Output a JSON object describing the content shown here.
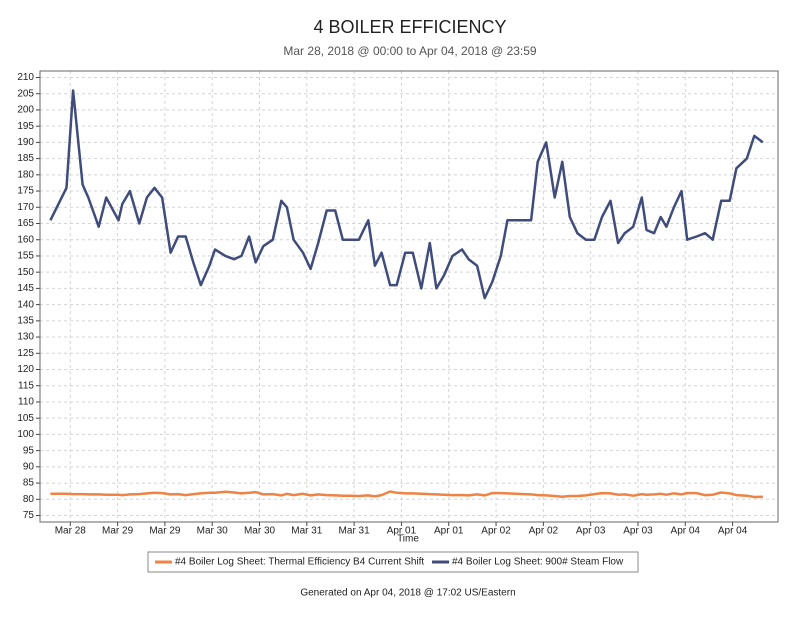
{
  "chart_data": {
    "type": "line",
    "title": "4 BOILER EFFICIENCY",
    "subtitle": "Mar 28, 2018 @ 00:00 to Apr 04, 2018 @ 23:59",
    "x_label": "Time",
    "footer": "Generated on Apr 04, 2018 @ 17:02 US/Eastern",
    "x": [
      -0.21,
      -0.04,
      0.03,
      0.13,
      0.19,
      0.3,
      0.38,
      0.51,
      0.55,
      0.63,
      0.73,
      0.81,
      0.89,
      0.97,
      1.06,
      1.14,
      1.22,
      1.3,
      1.38,
      1.47,
      1.53,
      1.64,
      1.73,
      1.81,
      1.89,
      1.96,
      2.04,
      2.14,
      2.23,
      2.29,
      2.36,
      2.46,
      2.54,
      2.62,
      2.71,
      2.8,
      2.88,
      2.96,
      3.05,
      3.15,
      3.22,
      3.29,
      3.38,
      3.45,
      3.54,
      3.62,
      3.71,
      3.8,
      3.87,
      3.95,
      4.04,
      4.14,
      4.21,
      4.3,
      4.38,
      4.46,
      4.55,
      4.62,
      4.71,
      4.79,
      4.87,
      4.94,
      5.03,
      5.12,
      5.2,
      5.28,
      5.36,
      5.45,
      5.54,
      5.62,
      5.71,
      5.79,
      5.86,
      5.95,
      6.04,
      6.09,
      6.17,
      6.24,
      6.3,
      6.38,
      6.46,
      6.52,
      6.62,
      6.71,
      6.79,
      6.88,
      6.97,
      7.04,
      7.15,
      7.23,
      7.32
    ],
    "series": [
      {
        "name": "#4 Boiler Log Sheet: Thermal Efficiency B4 Current Shift",
        "color": "#ef8345",
        "values": [
          81.7,
          81.7,
          81.6,
          81.6,
          81.5,
          81.5,
          81.4,
          81.4,
          81.3,
          81.5,
          81.6,
          81.8,
          82,
          81.9,
          81.5,
          81.6,
          81.3,
          81.6,
          81.8,
          82,
          82,
          82.3,
          82.1,
          81.8,
          82,
          82.2,
          81.5,
          81.6,
          81.2,
          81.7,
          81.3,
          81.7,
          81.2,
          81.5,
          81.3,
          81.2,
          81.1,
          81.1,
          81,
          81.2,
          80.9,
          81.3,
          82.4,
          82,
          81.8,
          81.8,
          81.7,
          81.6,
          81.5,
          81.4,
          81.3,
          81.3,
          81.2,
          81.5,
          81.2,
          81.9,
          81.9,
          81.8,
          81.7,
          81.6,
          81.5,
          81.3,
          81.2,
          81,
          80.8,
          81,
          81,
          81.2,
          81.6,
          81.9,
          81.8,
          81.4,
          81.5,
          81.1,
          81.6,
          81.4,
          81.5,
          81.7,
          81.4,
          81.8,
          81.5,
          81.9,
          81.9,
          81.3,
          81.4,
          82.1,
          81.8,
          81.3,
          81.1,
          80.7,
          80.8
        ]
      },
      {
        "name": "#4 Boiler Log Sheet: 900# Steam Flow",
        "color": "#3f4c7c",
        "values": [
          166,
          176,
          206,
          177,
          173,
          164,
          173,
          166,
          171,
          175,
          165,
          173,
          176,
          173,
          156,
          161,
          161,
          153,
          146,
          152,
          157,
          155,
          154,
          155,
          161,
          153,
          158,
          160,
          172,
          170,
          160,
          156,
          151,
          159,
          169,
          169,
          160,
          160,
          160,
          166,
          152,
          156,
          146,
          146,
          156,
          156,
          145,
          159,
          145,
          149,
          155,
          157,
          154,
          152,
          142,
          147,
          155,
          166,
          166,
          166,
          166,
          184,
          190,
          173,
          184,
          167,
          162,
          160,
          160,
          167,
          172,
          159,
          162,
          164,
          173,
          163,
          162,
          167,
          164,
          170,
          175,
          160,
          161,
          162,
          160,
          172,
          172,
          182,
          185,
          192,
          190
        ]
      }
    ],
    "xlim": [
      -0.32,
      7.48
    ],
    "xticks": [
      {
        "value": 0,
        "label": "Mar 28"
      },
      {
        "value": 0.5,
        "label": "Mar 29"
      },
      {
        "value": 1,
        "label": "Mar 29"
      },
      {
        "value": 1.5,
        "label": "Mar 30"
      },
      {
        "value": 2,
        "label": "Mar 30"
      },
      {
        "value": 2.5,
        "label": "Mar 31"
      },
      {
        "value": 3,
        "label": "Mar 31"
      },
      {
        "value": 3.5,
        "label": "Apr 01"
      },
      {
        "value": 4,
        "label": "Apr 01"
      },
      {
        "value": 4.5,
        "label": "Apr 02"
      },
      {
        "value": 5,
        "label": "Apr 02"
      },
      {
        "value": 5.5,
        "label": "Apr 03"
      },
      {
        "value": 6,
        "label": "Apr 03"
      },
      {
        "value": 6.5,
        "label": "Apr 04"
      },
      {
        "value": 7,
        "label": "Apr 04"
      }
    ],
    "ylim": [
      73,
      212
    ],
    "yticks": [
      75,
      80,
      85,
      90,
      95,
      100,
      105,
      110,
      115,
      120,
      125,
      130,
      135,
      140,
      145,
      150,
      155,
      160,
      165,
      170,
      175,
      180,
      185,
      190,
      195,
      200,
      205,
      210
    ],
    "grid": true
  }
}
